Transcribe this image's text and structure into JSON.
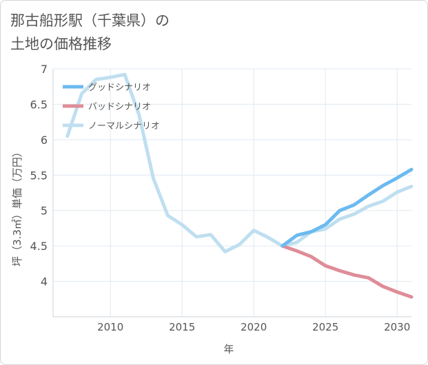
{
  "title_lines": [
    "那古船形駅（千葉県）の",
    "土地の価格推移"
  ],
  "chart_data": {
    "type": "line",
    "title": "那古船形駅（千葉県）の土地の価格推移",
    "xlabel": "年",
    "ylabel": "坪（3.3㎡）単価（万円）",
    "xlim": [
      2006,
      2031
    ],
    "ylim": [
      3.5,
      7
    ],
    "x_ticks": [
      2010,
      2015,
      2020,
      2025,
      2030
    ],
    "y_ticks": [
      4,
      4.5,
      5,
      5.5,
      6,
      6.5,
      7
    ],
    "y_tick_labels": [
      "4",
      "4.5",
      "5",
      "5.5",
      "6",
      "6.5",
      "7"
    ],
    "grid": true,
    "legend_position": "top-left",
    "series": [
      {
        "name": "グッドシナリオ",
        "color": "#6bbaf0",
        "x": [
          2022,
          2023,
          2024,
          2025,
          2026,
          2027,
          2028,
          2029,
          2030,
          2031
        ],
        "values": [
          4.5,
          4.65,
          4.7,
          4.8,
          5.0,
          5.08,
          5.22,
          5.35,
          5.46,
          5.58
        ]
      },
      {
        "name": "バッドシナリオ",
        "color": "#df8d98",
        "x": [
          2022,
          2023,
          2024,
          2025,
          2026,
          2027,
          2028,
          2029,
          2030,
          2031
        ],
        "values": [
          4.5,
          4.43,
          4.35,
          4.22,
          4.15,
          4.09,
          4.05,
          3.93,
          3.85,
          3.78
        ]
      },
      {
        "name": "ノーマルシナリオ",
        "color": "#bfdff0",
        "x": [
          2007,
          2008,
          2009,
          2010,
          2011,
          2012,
          2013,
          2014,
          2015,
          2016,
          2017,
          2018,
          2019,
          2020,
          2021,
          2022,
          2023,
          2024,
          2025,
          2026,
          2027,
          2028,
          2029,
          2030,
          2031
        ],
        "values": [
          6.05,
          6.65,
          6.85,
          6.88,
          6.92,
          6.35,
          5.45,
          4.93,
          4.8,
          4.63,
          4.66,
          4.42,
          4.52,
          4.72,
          4.62,
          4.5,
          4.55,
          4.7,
          4.74,
          4.88,
          4.95,
          5.06,
          5.13,
          5.26,
          5.34
        ]
      }
    ]
  }
}
